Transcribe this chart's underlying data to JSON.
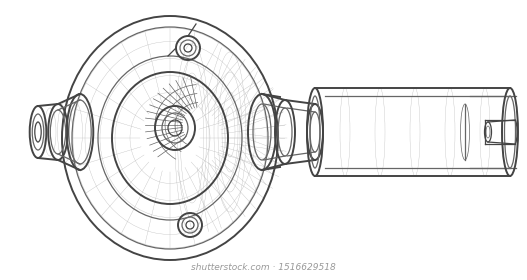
{
  "background_color": "#ffffff",
  "line_color": "#444444",
  "medium_line_color": "#666666",
  "light_line_color": "#999999",
  "very_light_line_color": "#bbbbbb",
  "mesh_color": "#bbbbbb",
  "lw_heavy": 1.4,
  "lw_medium": 0.9,
  "lw_light": 0.5,
  "lw_mesh": 0.25,
  "figsize": [
    5.27,
    2.8
  ],
  "dpi": 100,
  "watermark_text": "shutterstock.com · 1516629518",
  "watermark_color": "#999999",
  "watermark_fontsize": 6.5
}
